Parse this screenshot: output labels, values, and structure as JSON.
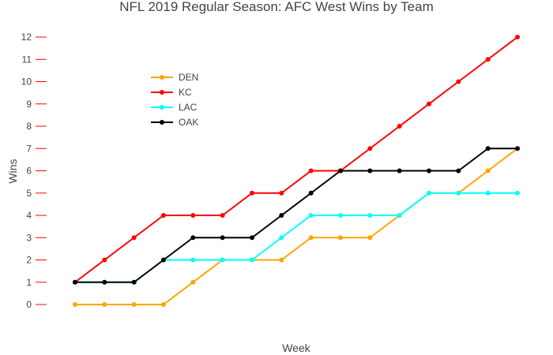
{
  "chart_data": {
    "type": "line",
    "title": "NFL 2019 Regular Season: AFC West Wins by Team",
    "xlabel": "Week",
    "ylabel": "Wins",
    "x": [
      1,
      2,
      3,
      4,
      5,
      6,
      7,
      8,
      9,
      10,
      11,
      12,
      13,
      14,
      15,
      16
    ],
    "ylim": [
      0,
      12
    ],
    "yticks": [
      0,
      1,
      2,
      3,
      4,
      5,
      6,
      7,
      8,
      9,
      10,
      11,
      12
    ],
    "x_tick_labels_shown": false,
    "grid": false,
    "legend_position": "top-left",
    "tick_color": "#ff0000",
    "series": [
      {
        "name": "DEN",
        "color": "#ffa500",
        "values": [
          0,
          0,
          0,
          0,
          1,
          2,
          2,
          2,
          3,
          3,
          3,
          4,
          5,
          5,
          6,
          7
        ]
      },
      {
        "name": "KC",
        "color": "#ff0000",
        "values": [
          1,
          2,
          3,
          4,
          4,
          4,
          5,
          5,
          6,
          6,
          7,
          8,
          9,
          10,
          11,
          12
        ]
      },
      {
        "name": "LAC",
        "color": "#00ffff",
        "values": [
          1,
          1,
          1,
          2,
          2,
          2,
          2,
          3,
          4,
          4,
          4,
          4,
          5,
          5,
          5,
          5
        ]
      },
      {
        "name": "OAK",
        "color": "#000000",
        "values": [
          1,
          1,
          1,
          2,
          3,
          3,
          3,
          4,
          5,
          6,
          6,
          6,
          6,
          6,
          7,
          7
        ]
      }
    ]
  }
}
